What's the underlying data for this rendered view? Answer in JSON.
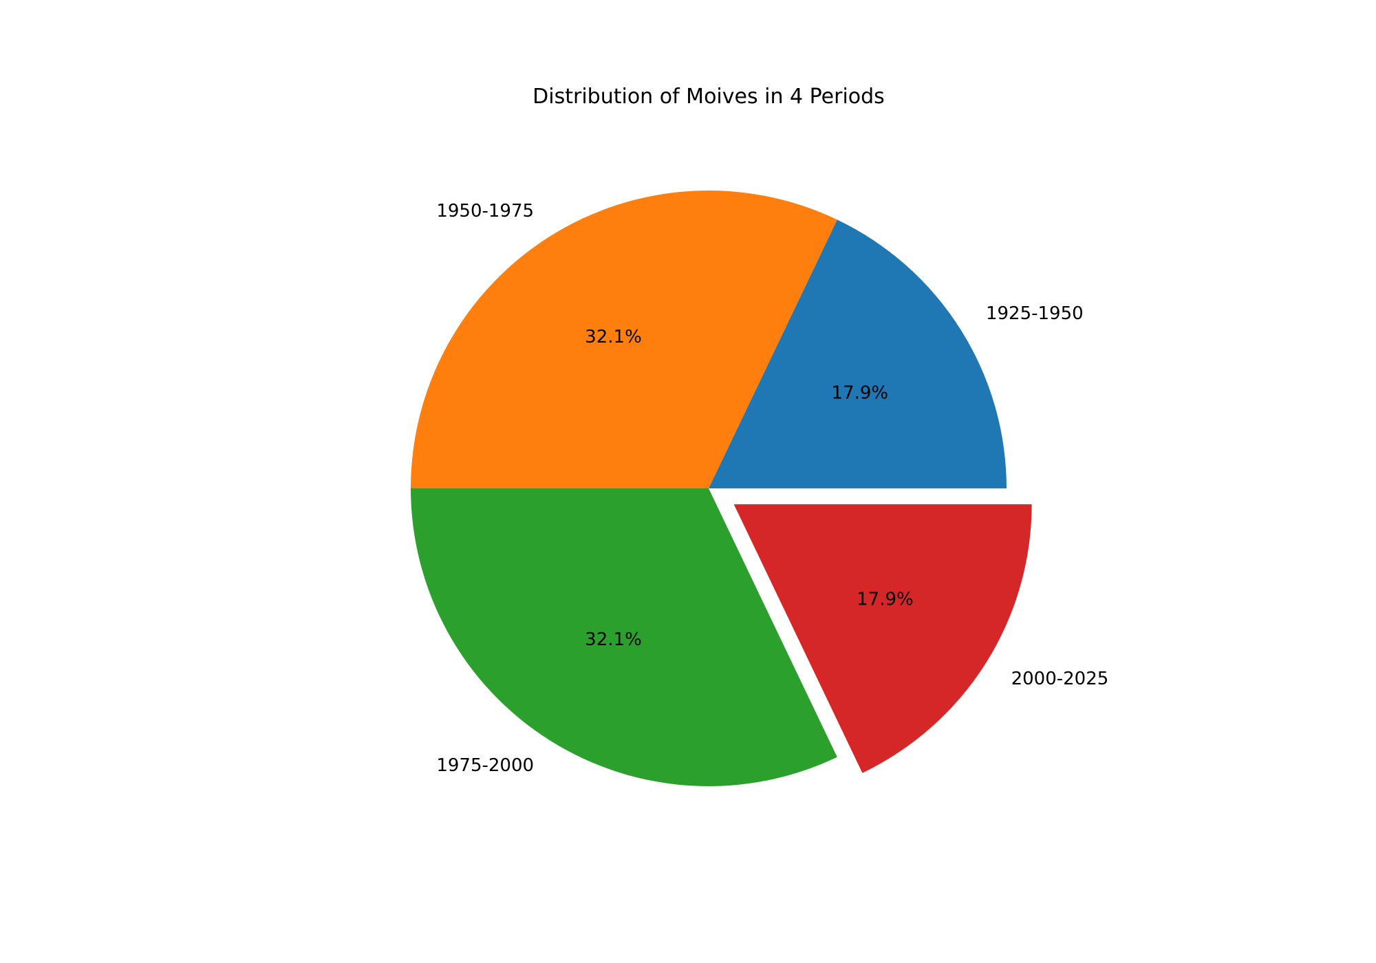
{
  "chart_data": {
    "type": "pie",
    "title": "Distribution of Moives in 4 Periods",
    "categories": [
      "1925-1950",
      "1950-1975",
      "1975-2000",
      "2000-2025"
    ],
    "values": [
      17.9,
      32.1,
      32.1,
      17.9
    ],
    "percent_labels": [
      "17.9%",
      "32.1%",
      "32.1%",
      "17.9%"
    ],
    "colors": [
      "#1f77b4",
      "#ff7f0e",
      "#2ca02c",
      "#d62728"
    ],
    "explode": [
      0,
      0,
      0,
      0.1
    ],
    "start_angle_deg": 0,
    "direction": "counterclockwise"
  }
}
